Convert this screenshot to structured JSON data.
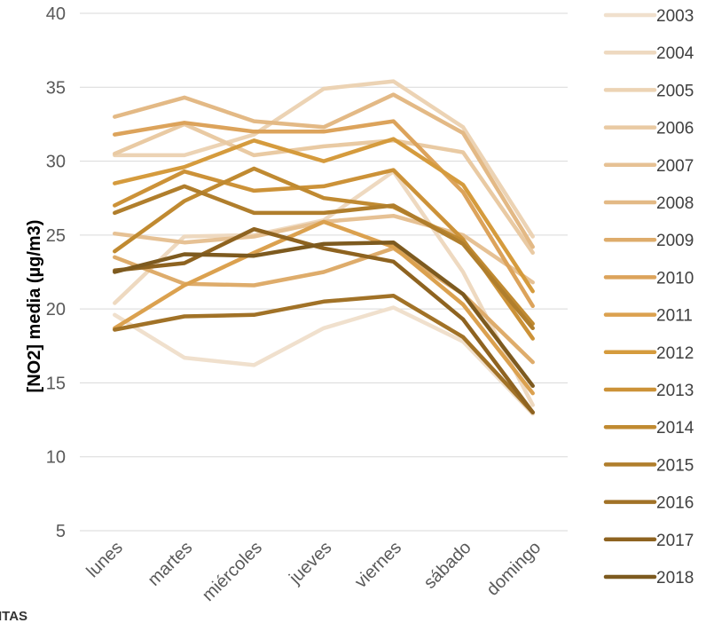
{
  "watermark": "ITAS",
  "chart_data": {
    "type": "line",
    "title": "",
    "xlabel": "",
    "ylabel": "[NO2] media (µg/m3)",
    "categories": [
      "lunes",
      "martes",
      "miércoles",
      "jueves",
      "viernes",
      "sábado",
      "domingo"
    ],
    "ylim": [
      5,
      40
    ],
    "yticks": [
      5,
      10,
      15,
      20,
      25,
      30,
      35,
      40
    ],
    "grid": "horizontal",
    "legend_position": "right",
    "series": [
      {
        "name": "2003",
        "color": "#f0e0cd",
        "values": [
          19.6,
          16.7,
          16.2,
          18.7,
          20.1,
          17.8,
          12.9
        ]
      },
      {
        "name": "2004",
        "color": "#eed9c0",
        "values": [
          20.4,
          24.9,
          25.0,
          26.0,
          29.3,
          22.5,
          13.5
        ]
      },
      {
        "name": "2005",
        "color": "#ecd3b4",
        "values": [
          30.4,
          30.4,
          31.8,
          34.9,
          35.4,
          32.3,
          24.9
        ]
      },
      {
        "name": "2006",
        "color": "#e9caa3",
        "values": [
          30.5,
          32.5,
          30.4,
          31.0,
          31.4,
          30.6,
          23.8
        ]
      },
      {
        "name": "2007",
        "color": "#e6c194",
        "values": [
          25.1,
          24.5,
          24.9,
          25.9,
          26.3,
          25.0,
          21.8
        ]
      },
      {
        "name": "2008",
        "color": "#e3b985",
        "values": [
          33.0,
          34.3,
          32.7,
          32.3,
          34.5,
          31.9,
          24.2
        ]
      },
      {
        "name": "2009",
        "color": "#deac6b",
        "values": [
          23.5,
          21.7,
          21.6,
          22.5,
          24.1,
          21.0,
          16.4
        ]
      },
      {
        "name": "2010",
        "color": "#dca35b",
        "values": [
          31.8,
          32.6,
          32.0,
          32.0,
          32.7,
          27.9,
          20.2
        ]
      },
      {
        "name": "2011",
        "color": "#dba14f",
        "values": [
          18.7,
          21.6,
          23.8,
          25.9,
          24.2,
          20.3,
          14.3
        ]
      },
      {
        "name": "2012",
        "color": "#d59b3d",
        "values": [
          28.5,
          29.6,
          31.4,
          30.0,
          31.5,
          28.4,
          21.2
        ]
      },
      {
        "name": "2013",
        "color": "#cc9238",
        "values": [
          27.0,
          29.3,
          28.0,
          28.3,
          29.4,
          24.7,
          18.0
        ]
      },
      {
        "name": "2014",
        "color": "#c08a31",
        "values": [
          23.9,
          27.3,
          29.5,
          27.5,
          26.9,
          24.6,
          19.0
        ]
      },
      {
        "name": "2015",
        "color": "#b07e2c",
        "values": [
          26.5,
          28.3,
          26.5,
          26.5,
          27.0,
          24.4,
          18.7
        ]
      },
      {
        "name": "2016",
        "color": "#a17227",
        "values": [
          18.6,
          19.5,
          19.6,
          20.5,
          20.9,
          18.1,
          13.0
        ]
      },
      {
        "name": "2017",
        "color": "#8e6320",
        "values": [
          22.6,
          23.1,
          25.4,
          24.1,
          23.2,
          19.3,
          13.0
        ]
      },
      {
        "name": "2018",
        "color": "#7d5a1f",
        "values": [
          22.5,
          23.7,
          23.6,
          24.4,
          24.5,
          21.0,
          14.8
        ]
      }
    ]
  }
}
